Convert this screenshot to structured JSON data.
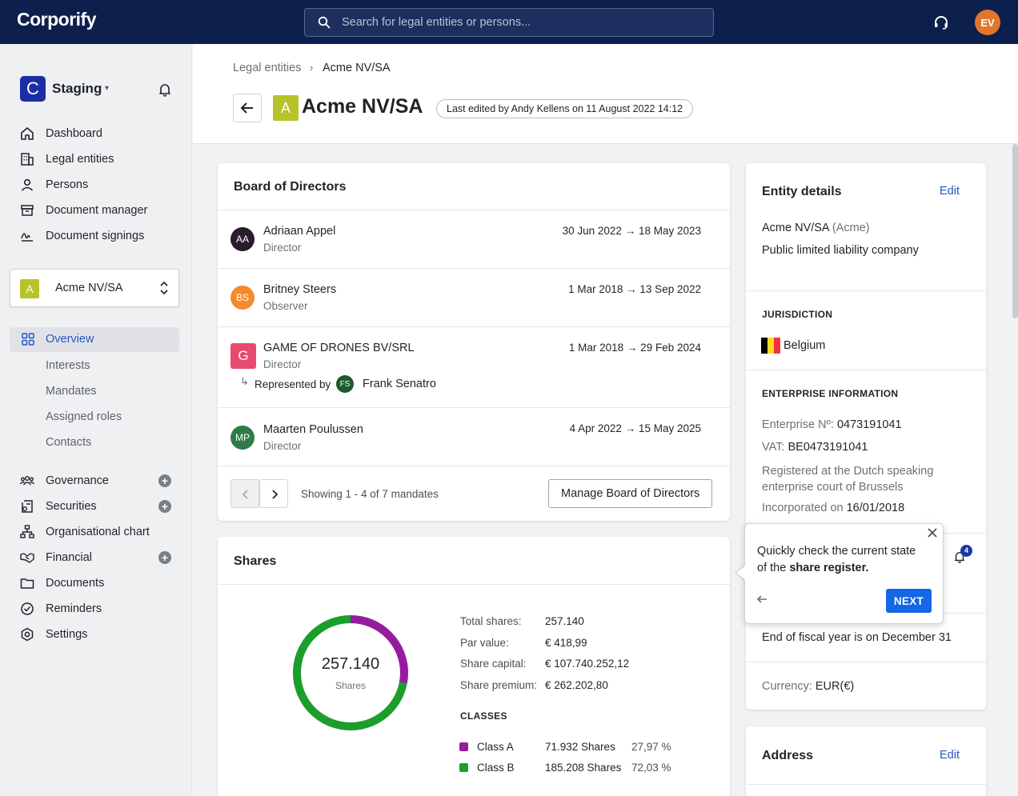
{
  "app": {
    "logo": "Corporify",
    "search_placeholder": "Search for legal entities or persons...",
    "user_initials": "EV",
    "user_avatar_color": "#e0772c"
  },
  "sidebar": {
    "workspace": {
      "letter": "C",
      "name": "Staging"
    },
    "nav": [
      {
        "label": "Dashboard",
        "icon": "home-icon"
      },
      {
        "label": "Legal entities",
        "icon": "building-icon"
      },
      {
        "label": "Persons",
        "icon": "person-icon"
      },
      {
        "label": "Document manager",
        "icon": "archive-icon"
      },
      {
        "label": "Document signings",
        "icon": "signature-icon"
      }
    ],
    "entity_selector": {
      "letter": "A",
      "name": "Acme NV/SA",
      "badge_color": "#b6c32a"
    },
    "overview_label": "Overview",
    "sub_items": [
      "Interests",
      "Mandates",
      "Assigned roles",
      "Contacts"
    ],
    "sections": [
      {
        "label": "Governance",
        "icon": "people-icon",
        "add": true
      },
      {
        "label": "Securities",
        "icon": "certificate-icon",
        "add": true
      },
      {
        "label": "Organisational chart",
        "icon": "org-chart-icon",
        "add": false
      },
      {
        "label": "Financial",
        "icon": "handshake-icon",
        "add": true
      },
      {
        "label": "Documents",
        "icon": "folder-icon",
        "add": false
      },
      {
        "label": "Reminders",
        "icon": "check-circle-icon",
        "add": false
      },
      {
        "label": "Settings",
        "icon": "gear-icon",
        "add": false
      }
    ],
    "plus_symbol": "+"
  },
  "header": {
    "breadcrumb": [
      "Legal entities",
      "Acme NV/SA"
    ],
    "breadcrumb_sep": "›",
    "title_letter": "A",
    "title": "Acme NV/SA",
    "last_edited": "Last edited by Andy Kellens on 11 August 2022 14:12"
  },
  "board": {
    "title": "Board of Directors",
    "members": [
      {
        "initials": "AA",
        "name": "Adriaan Appel",
        "role": "Director",
        "dates": "30 Jun 2022 → 18 May 2023",
        "color": "#2a1c2c",
        "shape": "circle"
      },
      {
        "initials": "BS",
        "name": "Britney Steers",
        "role": "Observer",
        "dates": "1 Mar 2018 → 13 Sep 2022",
        "color": "#f58a2c",
        "shape": "circle"
      },
      {
        "initials": "G",
        "name": "GAME OF DRONES BV/SRL",
        "role": "Director",
        "dates": "1 Mar 2018 → 29 Feb 2024",
        "color": "#e84a6f",
        "shape": "square"
      },
      {
        "initials": "MP",
        "name": "Maarten Poulussen",
        "role": "Director",
        "dates": "4 Apr 2022 → 15 May 2025",
        "color": "#2e7d46",
        "shape": "circle"
      }
    ],
    "represented_label": "Represented by",
    "representative": {
      "initials": "FS",
      "name": "Frank Senatro",
      "color": "#1e5a2a"
    },
    "showing": "Showing 1 - 4 of 7 mandates",
    "manage_button": "Manage Board of Directors"
  },
  "shares": {
    "title": "Shares",
    "donut_value": "257.140",
    "donut_label": "Shares",
    "stats": [
      {
        "k": "Total shares:",
        "v": "257.140"
      },
      {
        "k": "Par value:",
        "v": "€ 418,99"
      },
      {
        "k": "Share capital:",
        "v": "€ 107.740.252,12"
      },
      {
        "k": "Share premium:",
        "v": "€ 262.202,80"
      }
    ],
    "classes_heading": "CLASSES",
    "classes": [
      {
        "name": "Class A",
        "shares": "71.932 Shares",
        "percent": "27,97 %",
        "fraction": 0.2797,
        "color": "#961b9e"
      },
      {
        "name": "Class B",
        "shares": "185.208 Shares",
        "percent": "72,03 %",
        "fraction": 0.7203,
        "color": "#1b9e2a"
      }
    ]
  },
  "entity_details": {
    "title": "Entity details",
    "edit": "Edit",
    "name": "Acme NV/SA",
    "short_name": "(Acme)",
    "type": "Public limited liability company",
    "jurisdiction_heading": "JURISDICTION",
    "country": "Belgium",
    "enterprise_heading": "ENTERPRISE INFORMATION",
    "enterprise_no_label": "Enterprise Nº:",
    "enterprise_no": "0473191041",
    "vat_label": "VAT:",
    "vat": "BE0473191041",
    "registered": "Registered at the Dutch speaking enterprise court of Brussels",
    "incorporated_label": "Incorporated on",
    "incorporated": "16/01/2018",
    "reminder_count": "4",
    "fiscal_year": "End of fiscal year is on December 31",
    "currency_label": "Currency:",
    "currency": "EUR(€)"
  },
  "address": {
    "title": "Address",
    "edit": "Edit"
  },
  "tooltip": {
    "text_before": "Quickly check the current state of the",
    "text_bold": "share register.",
    "next": "NEXT"
  }
}
